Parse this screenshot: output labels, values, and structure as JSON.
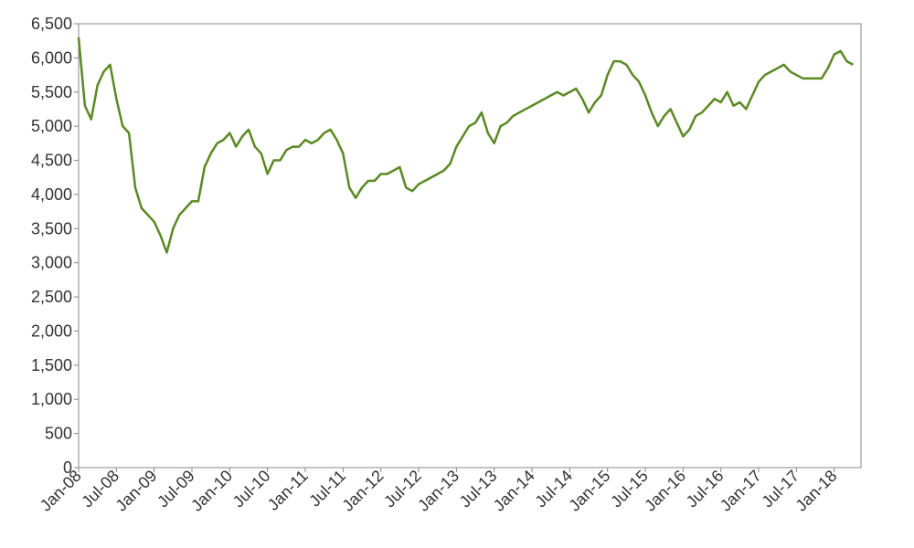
{
  "chart_data": {
    "type": "line",
    "x": [
      "Jan-08",
      "Feb-08",
      "Mar-08",
      "Apr-08",
      "May-08",
      "Jun-08",
      "Jul-08",
      "Aug-08",
      "Sep-08",
      "Oct-08",
      "Nov-08",
      "Dec-08",
      "Jan-09",
      "Feb-09",
      "Mar-09",
      "Apr-09",
      "May-09",
      "Jun-09",
      "Jul-09",
      "Aug-09",
      "Sep-09",
      "Oct-09",
      "Nov-09",
      "Dec-09",
      "Jan-10",
      "Feb-10",
      "Mar-10",
      "Apr-10",
      "May-10",
      "Jun-10",
      "Jul-10",
      "Aug-10",
      "Sep-10",
      "Oct-10",
      "Nov-10",
      "Dec-10",
      "Jan-11",
      "Feb-11",
      "Mar-11",
      "Apr-11",
      "May-11",
      "Jun-11",
      "Jul-11",
      "Aug-11",
      "Sep-11",
      "Oct-11",
      "Nov-11",
      "Dec-11",
      "Jan-12",
      "Feb-12",
      "Mar-12",
      "Apr-12",
      "May-12",
      "Jun-12",
      "Jul-12",
      "Aug-12",
      "Sep-12",
      "Oct-12",
      "Nov-12",
      "Dec-12",
      "Jan-13",
      "Feb-13",
      "Mar-13",
      "Apr-13",
      "May-13",
      "Jun-13",
      "Jul-13",
      "Aug-13",
      "Sep-13",
      "Oct-13",
      "Nov-13",
      "Dec-13",
      "Jan-14",
      "Feb-14",
      "Mar-14",
      "Apr-14",
      "May-14",
      "Jun-14",
      "Jul-14",
      "Aug-14",
      "Sep-14",
      "Oct-14",
      "Nov-14",
      "Dec-14",
      "Jan-15",
      "Feb-15",
      "Mar-15",
      "Apr-15",
      "May-15",
      "Jun-15",
      "Jul-15",
      "Aug-15",
      "Sep-15",
      "Oct-15",
      "Nov-15",
      "Dec-15",
      "Jan-16",
      "Feb-16",
      "Mar-16",
      "Apr-16",
      "May-16",
      "Jun-16",
      "Jul-16",
      "Aug-16",
      "Sep-16",
      "Oct-16",
      "Nov-16",
      "Dec-16",
      "Jan-17",
      "Feb-17",
      "Mar-17",
      "Apr-17",
      "May-17",
      "Jun-17",
      "Jul-17",
      "Aug-17",
      "Sep-17",
      "Oct-17",
      "Nov-17",
      "Dec-17",
      "Jan-18",
      "Feb-18",
      "Mar-18",
      "Apr-18"
    ],
    "series": [
      {
        "color": "#5a8a22",
        "values": [
          6300,
          5300,
          5100,
          5600,
          5800,
          5900,
          5400,
          5000,
          4900,
          4100,
          3800,
          3700,
          3600,
          3400,
          3150,
          3500,
          3700,
          3800,
          3900,
          3900,
          4400,
          4600,
          4750,
          4800,
          4900,
          4700,
          4850,
          4950,
          4700,
          4600,
          4300,
          4500,
          4500,
          4650,
          4700,
          4700,
          4800,
          4750,
          4800,
          4900,
          4950,
          4800,
          4600,
          4100,
          3950,
          4100,
          4200,
          4200,
          4300,
          4300,
          4350,
          4400,
          4100,
          4050,
          4150,
          4200,
          4250,
          4300,
          4350,
          4450,
          4700,
          4850,
          5000,
          5050,
          5200,
          4900,
          4750,
          5000,
          5050,
          5150,
          5200,
          5250,
          5300,
          5350,
          5400,
          5450,
          5500,
          5450,
          5500,
          5550,
          5400,
          5200,
          5350,
          5450,
          5750,
          5950,
          5950,
          5900,
          5750,
          5650,
          5450,
          5200,
          5000,
          5150,
          5250,
          5050,
          4850,
          4950,
          5150,
          5200,
          5300,
          5400,
          5350,
          5500,
          5300,
          5350,
          5250,
          5450,
          5650,
          5750,
          5800,
          5850,
          5900,
          5800,
          5750,
          5700,
          5700,
          5700,
          5700,
          5850,
          6050,
          6100,
          5950,
          5900
        ]
      }
    ],
    "xticks": [
      "Jan-08",
      "Jul-08",
      "Jan-09",
      "Jul-09",
      "Jan-10",
      "Jul-10",
      "Jan-11",
      "Jul-11",
      "Jan-12",
      "Jul-12",
      "Jan-13",
      "Jul-13",
      "Jan-14",
      "Jul-14",
      "Jan-15",
      "Jul-15",
      "Jan-16",
      "Jul-16",
      "Jan-17",
      "Jul-17",
      "Jan-18"
    ],
    "ylim": [
      0,
      6500
    ],
    "yticks": [
      0,
      500,
      {
        "value": 1000,
        "label": "1,000"
      },
      {
        "value": 1500,
        "label": "1,500"
      },
      {
        "value": 2000,
        "label": "2,000"
      },
      {
        "value": 2500,
        "label": "2,500"
      },
      {
        "value": 3000,
        "label": "3,000"
      },
      {
        "value": 3500,
        "label": "3,500"
      },
      {
        "value": 4000,
        "label": "4,000"
      },
      {
        "value": 4500,
        "label": "4,500"
      },
      {
        "value": 5000,
        "label": "5,000"
      },
      {
        "value": 5500,
        "label": "5,500"
      },
      {
        "value": 6000,
        "label": "6,000"
      },
      {
        "value": 6500,
        "label": "6,500"
      }
    ],
    "grid": false
  }
}
